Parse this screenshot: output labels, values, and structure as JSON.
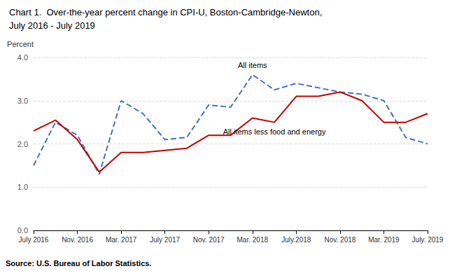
{
  "chart_data": {
    "type": "line",
    "title": "Chart 1.  Over-the-year percent change in CPI-U, Boston-Cambridge-Newton,",
    "subtitle": "July 2016 - July 2019",
    "y_label": "Percent",
    "source": "Source: U.S. Bureau of Labor Statistics.",
    "categories": [
      "July 2016",
      null,
      "Nov. 2016",
      null,
      "Mar. 2017",
      null,
      "July 2017",
      null,
      "Nov. 2017",
      null,
      "Mar. 2018",
      null,
      "July.2018",
      null,
      "Nov. 2018",
      null,
      "Mar. 2019",
      null,
      "July. 2019"
    ],
    "series": [
      {
        "name": "All items",
        "color": "#4472C4",
        "line_style": "dashed",
        "values": [
          1.5,
          2.5,
          2.2,
          1.3,
          3.0,
          2.7,
          2.1,
          2.15,
          2.9,
          2.85,
          3.6,
          3.25,
          3.4,
          3.3,
          3.2,
          3.15,
          3.0,
          2.15,
          2.0
        ]
      },
      {
        "name": "All items less food and energy",
        "color": "#C00000",
        "line_style": "solid",
        "values": [
          2.3,
          2.55,
          2.1,
          1.35,
          1.8,
          1.8,
          1.85,
          1.9,
          2.2,
          2.2,
          2.6,
          2.5,
          3.1,
          3.1,
          3.2,
          3.0,
          2.5,
          2.5,
          2.7
        ]
      }
    ],
    "ylim": [
      0.0,
      4.0
    ],
    "yticks": [
      {
        "value": 0,
        "label": "0.0"
      },
      {
        "value": 1,
        "label": "1.0"
      },
      {
        "value": 2,
        "label": "2.0"
      },
      {
        "value": 3,
        "label": "3.0"
      },
      {
        "value": 4,
        "label": "4.0"
      }
    ],
    "grid": true
  }
}
